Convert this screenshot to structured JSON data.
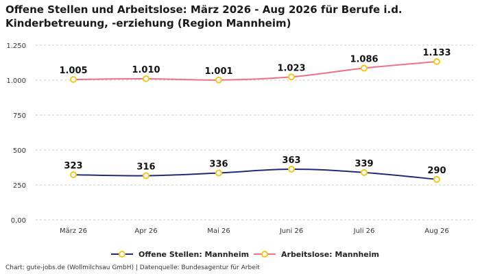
{
  "chart_data": {
    "type": "line",
    "title_line1": "Offene Stellen und Arbeitslose: März 2026 - Aug 2026 für Berufe i.d.",
    "title_line2": "Kinderbetreuung, -erziehung (Region Mannheim)",
    "categories": [
      "März 26",
      "Apr 26",
      "Mai 26",
      "Juni 26",
      "Juli 26",
      "Aug 26"
    ],
    "ylim": [
      0,
      1250
    ],
    "yticks": [
      0,
      250,
      500,
      750,
      1000,
      1250
    ],
    "ytick_labels": [
      "0,00",
      "250",
      "500",
      "750",
      "1.000",
      "1.250"
    ],
    "grid": true,
    "legend_position": "bottom",
    "series": [
      {
        "name": "Offene Stellen: Mannheim",
        "values": [
          323,
          316,
          336,
          363,
          339,
          290
        ],
        "labels": [
          "323",
          "316",
          "336",
          "363",
          "339",
          "290"
        ],
        "color": "#1f2a7a"
      },
      {
        "name": "Arbeitslose: Mannheim",
        "values": [
          1005,
          1010,
          1001,
          1023,
          1086,
          1133
        ],
        "labels": [
          "1.005",
          "1.010",
          "1.001",
          "1.023",
          "1.086",
          "1.133"
        ],
        "color": "#f07088"
      }
    ],
    "marker_color": "#f5c518"
  },
  "source": "Chart: gute-jobs.de (Wollmilchsau GmbH) | Datenquelle: Bundesagentur für Arbeit"
}
